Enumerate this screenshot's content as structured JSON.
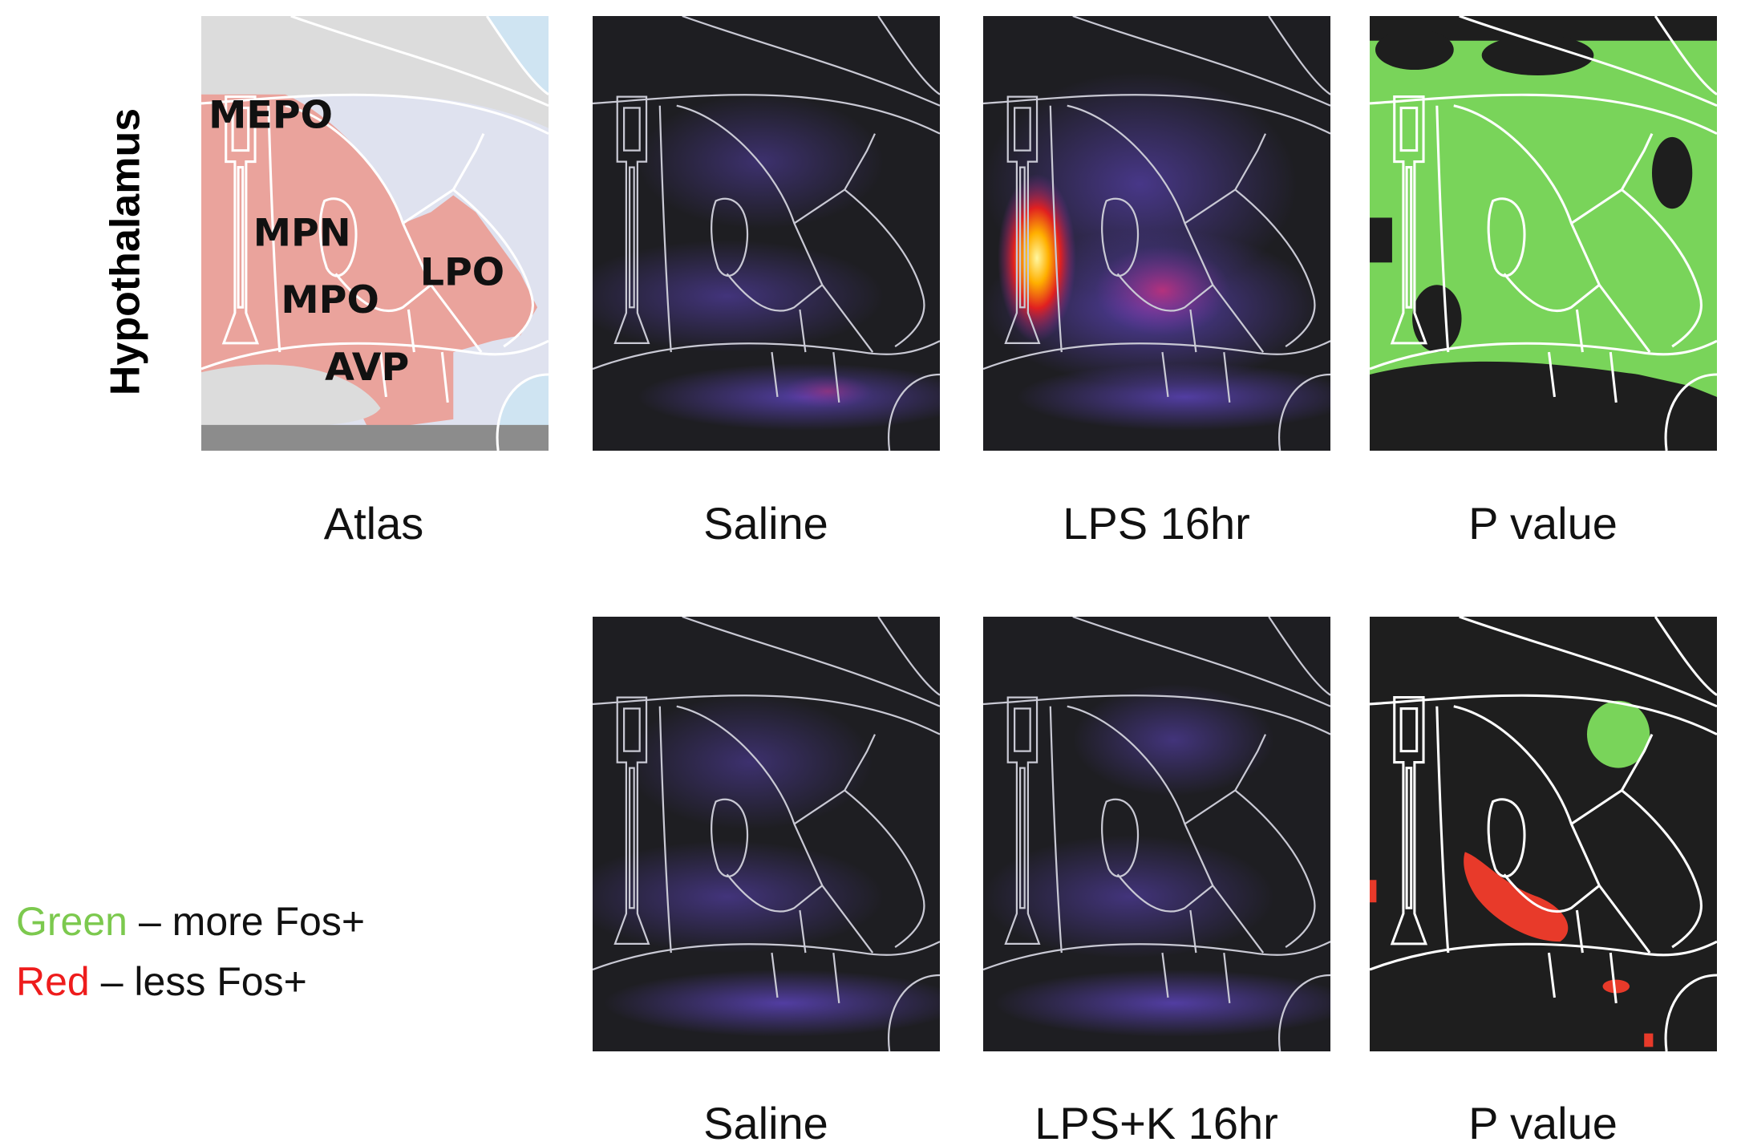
{
  "row_label": "Hypothalamus",
  "atlas_regions": [
    "MEPO",
    "MPN",
    "MPO",
    "AVP",
    "LPO"
  ],
  "rows": [
    {
      "panels": [
        "Atlas",
        "Saline",
        "LPS 16hr",
        "P value"
      ]
    },
    {
      "panels": [
        "Saline",
        "LPS+K 16hr",
        "P value"
      ]
    }
  ],
  "legend": [
    {
      "color_word": "Green",
      "text": "– more Fos+"
    },
    {
      "color_word": "Red",
      "text": "– less Fos+"
    }
  ]
}
